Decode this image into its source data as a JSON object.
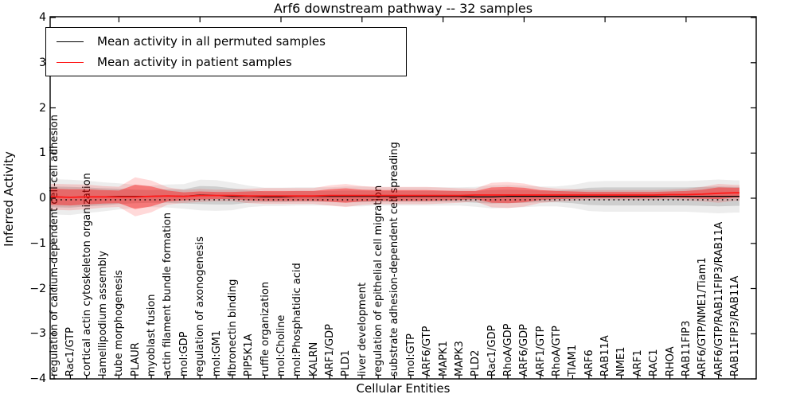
{
  "chart_data": {
    "type": "line",
    "title": "Arf6 downstream pathway -- 32 samples",
    "xlabel": "Cellular Entities",
    "ylabel": "Inferred Activity",
    "ylim": [
      -4,
      4
    ],
    "yticks": [
      4,
      3,
      2,
      1,
      0,
      -1,
      -2,
      -3,
      -4
    ],
    "ytick_labels": [
      "4",
      "3",
      "2",
      "1",
      "0",
      "−1",
      "−2",
      "−3",
      "−4"
    ],
    "grid": false,
    "legend_position": "upper left",
    "baseline": {
      "value": 0,
      "style": "dotted",
      "color": "#000000"
    },
    "entities": [
      "regulation of calcium-dependent cell-cell adhesion",
      "Rac1/GTP",
      "cortical actin cytoskeleton organization",
      "lamellipodium assembly",
      "tube morphogenesis",
      "PLAUR",
      "myoblast fusion",
      "actin filament bundle formation",
      "mol:GDP",
      "regulation of axonogenesis",
      "mol:GM1",
      "fibronectin binding",
      "PIP5K1A",
      "ruffle organization",
      "mol:Choline",
      "mol:Phosphatidic acid",
      "KALRN",
      "ARF1/GDP",
      "PLD1",
      "liver development",
      "regulation of epithelial cell migration",
      "substrate adhesion-dependent cell spreading",
      "mol:GTP",
      "ARF6/GTP",
      "MAPK1",
      "MAPK3",
      "PLD2",
      "Rac1/GDP",
      "RhoA/GDP",
      "ARF6/GDP",
      "ARF1/GTP",
      "RhoA/GTP",
      "TIAM1",
      "ARF6",
      "RAB11A",
      "NME1",
      "ARF1",
      "RAC1",
      "RHOA",
      "RAB11FIP3",
      "ARF6/GTP/NME1/Tiam1",
      "ARF6/GTP/RAB11FIP3/RAB11A",
      "RAB11FIP3/RAB11A"
    ],
    "series": [
      {
        "name": "Mean activity in all permuted samples",
        "color": "#000000",
        "band_inner_color": "rgba(0,0,0,0.13)",
        "band_outer_color": "rgba(0,0,0,0.07)",
        "values": [
          0.03,
          0.02,
          0.03,
          0.03,
          0.04,
          0.04,
          0.04,
          0.05,
          0.04,
          0.07,
          0.06,
          0.04,
          0.04,
          0.03,
          0.03,
          0.04,
          0.04,
          0.04,
          0.04,
          0.04,
          0.04,
          0.04,
          0.04,
          0.04,
          0.04,
          0.04,
          0.03,
          0.03,
          0.04,
          0.04,
          0.04,
          0.04,
          0.04,
          0.04,
          0.04,
          0.04,
          0.04,
          0.04,
          0.04,
          0.04,
          0.04,
          0.04,
          0.04
        ],
        "std": [
          0.23,
          0.23,
          0.21,
          0.19,
          0.17,
          0.15,
          0.14,
          0.15,
          0.16,
          0.2,
          0.2,
          0.18,
          0.14,
          0.12,
          0.12,
          0.12,
          0.12,
          0.12,
          0.13,
          0.13,
          0.12,
          0.12,
          0.12,
          0.12,
          0.12,
          0.12,
          0.13,
          0.15,
          0.15,
          0.14,
          0.13,
          0.13,
          0.15,
          0.19,
          0.2,
          0.2,
          0.2,
          0.2,
          0.2,
          0.2,
          0.21,
          0.22,
          0.21
        ]
      },
      {
        "name": "Mean activity in patient samples",
        "color": "#ff1a1a",
        "band_inner_color": "rgba(255,0,0,0.40)",
        "band_outer_color": "rgba(255,0,0,0.15)",
        "values": [
          0.03,
          0.02,
          0.03,
          0.03,
          0.03,
          0.03,
          0.04,
          0.05,
          0.04,
          0.06,
          0.06,
          0.06,
          0.05,
          0.05,
          0.05,
          0.05,
          0.05,
          0.06,
          0.06,
          0.06,
          0.06,
          0.06,
          0.06,
          0.06,
          0.06,
          0.06,
          0.07,
          0.07,
          0.07,
          0.07,
          0.07,
          0.07,
          0.07,
          0.07,
          0.07,
          0.07,
          0.07,
          0.07,
          0.08,
          0.08,
          0.09,
          0.11,
          0.12
        ],
        "std": [
          0.18,
          0.18,
          0.17,
          0.15,
          0.14,
          0.27,
          0.22,
          0.12,
          0.09,
          0.09,
          0.08,
          0.08,
          0.1,
          0.11,
          0.11,
          0.11,
          0.11,
          0.14,
          0.16,
          0.13,
          0.12,
          0.12,
          0.12,
          0.12,
          0.11,
          0.1,
          0.09,
          0.17,
          0.18,
          0.16,
          0.11,
          0.09,
          0.08,
          0.07,
          0.07,
          0.07,
          0.07,
          0.07,
          0.07,
          0.08,
          0.1,
          0.13,
          0.11
        ]
      }
    ],
    "top_tick_indices": [
      4,
      9,
      14,
      19,
      24,
      29,
      34,
      39
    ]
  }
}
